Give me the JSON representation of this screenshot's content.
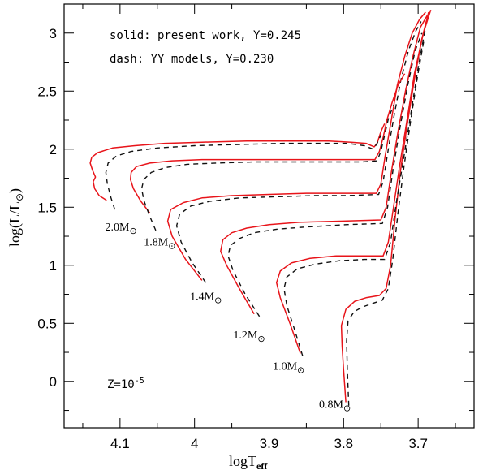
{
  "chart_data": {
    "type": "line",
    "title": "",
    "xlabel": "logT",
    "xlabel_sub": "eff",
    "ylabel_prefix": "log(L",
    "ylabel_mid": "/L",
    "ylabel_sun": "⊙",
    "ylabel_suffix": ")",
    "xlim": [
      4.175,
      3.625
    ],
    "ylim": [
      -0.4,
      3.25
    ],
    "x_inverted": true,
    "xticks": [
      4.1,
      4.0,
      3.9,
      3.8,
      3.7
    ],
    "xtick_labels": [
      "4.1",
      "4",
      "3.9",
      "3.8",
      "3.7"
    ],
    "yticks": [
      0,
      0.5,
      1,
      1.5,
      2,
      2.5,
      3
    ],
    "ytick_labels": [
      "0",
      "0.5",
      "1",
      "1.5",
      "2",
      "2.5",
      "3"
    ],
    "legend_text": [
      "solid: present work, Y=0.245",
      "dash: YY models, Y=0.230"
    ],
    "metallicity_label": "Z=10",
    "metallicity_exp": "-5",
    "colors": {
      "present": "#e8141a",
      "yy": "#111111"
    },
    "series": [
      {
        "name": "present-0.8",
        "style": "solid",
        "x": [
          3.797,
          3.8,
          3.802,
          3.803,
          3.797,
          3.785,
          3.77,
          3.752,
          3.743,
          3.737,
          3.731,
          3.724,
          3.715,
          3.705,
          3.695,
          3.686
        ],
        "y": [
          -0.18,
          0.1,
          0.3,
          0.48,
          0.62,
          0.69,
          0.72,
          0.74,
          0.8,
          1.0,
          1.4,
          1.8,
          2.2,
          2.6,
          2.95,
          3.18
        ]
      },
      {
        "name": "yy-0.8",
        "style": "dash",
        "x": [
          3.793,
          3.795,
          3.796,
          3.794,
          3.786,
          3.775,
          3.762,
          3.748,
          3.74,
          3.734,
          3.727,
          3.719,
          3.71,
          3.701,
          3.692
        ],
        "y": [
          -0.21,
          0.1,
          0.35,
          0.52,
          0.6,
          0.64,
          0.67,
          0.7,
          0.8,
          1.05,
          1.45,
          1.85,
          2.25,
          2.62,
          2.95
        ]
      },
      {
        "name": "present-1.0",
        "style": "solid",
        "x": [
          3.858,
          3.872,
          3.885,
          3.89,
          3.885,
          3.87,
          3.845,
          3.81,
          3.775,
          3.747,
          3.74,
          3.733,
          3.725,
          3.715,
          3.705,
          3.693,
          3.683
        ],
        "y": [
          0.24,
          0.5,
          0.72,
          0.85,
          0.95,
          1.02,
          1.06,
          1.08,
          1.08,
          1.08,
          1.2,
          1.5,
          1.85,
          2.25,
          2.65,
          3.0,
          3.2
        ]
      },
      {
        "name": "yy-1.0",
        "style": "dash",
        "x": [
          3.855,
          3.866,
          3.876,
          3.88,
          3.876,
          3.862,
          3.838,
          3.805,
          3.772,
          3.745,
          3.737,
          3.729,
          3.72,
          3.71,
          3.7,
          3.69
        ],
        "y": [
          0.22,
          0.45,
          0.65,
          0.8,
          0.9,
          0.97,
          1.01,
          1.04,
          1.05,
          1.05,
          1.2,
          1.55,
          1.9,
          2.3,
          2.7,
          3.05
        ]
      },
      {
        "name": "present-1.2",
        "style": "solid",
        "x": [
          3.92,
          3.94,
          3.957,
          3.965,
          3.962,
          3.95,
          3.93,
          3.9,
          3.86,
          3.8,
          3.75,
          3.743,
          3.736,
          3.727,
          3.717,
          3.707,
          3.697,
          3.688
        ],
        "y": [
          0.58,
          0.8,
          1.0,
          1.12,
          1.22,
          1.28,
          1.32,
          1.35,
          1.37,
          1.38,
          1.39,
          1.5,
          1.8,
          2.15,
          2.5,
          2.8,
          3.05,
          3.15
        ]
      },
      {
        "name": "yy-1.2",
        "style": "dash",
        "x": [
          3.913,
          3.932,
          3.948,
          3.955,
          3.952,
          3.94,
          3.92,
          3.89,
          3.85,
          3.795,
          3.748,
          3.741,
          3.733,
          3.724,
          3.714,
          3.704,
          3.695
        ],
        "y": [
          0.56,
          0.75,
          0.95,
          1.08,
          1.17,
          1.23,
          1.28,
          1.31,
          1.33,
          1.35,
          1.36,
          1.5,
          1.85,
          2.2,
          2.55,
          2.85,
          3.0
        ]
      },
      {
        "name": "present-1.4",
        "style": "solid",
        "x": [
          3.99,
          4.012,
          4.03,
          4.036,
          4.032,
          4.015,
          3.99,
          3.95,
          3.9,
          3.85,
          3.8,
          3.756,
          3.75,
          3.744,
          3.736,
          3.728,
          3.718,
          3.708,
          3.698,
          3.69
        ],
        "y": [
          0.87,
          1.05,
          1.25,
          1.38,
          1.48,
          1.54,
          1.58,
          1.6,
          1.61,
          1.62,
          1.62,
          1.62,
          1.7,
          1.95,
          2.25,
          2.55,
          2.8,
          3.0,
          3.12,
          3.18
        ]
      },
      {
        "name": "yy-1.4",
        "style": "dash",
        "x": [
          3.985,
          4.003,
          4.018,
          4.024,
          4.02,
          4.005,
          3.98,
          3.94,
          3.89,
          3.84,
          3.795,
          3.753,
          3.747,
          3.74,
          3.732,
          3.723,
          3.713,
          3.703,
          3.696
        ],
        "y": [
          0.85,
          1.02,
          1.2,
          1.34,
          1.44,
          1.51,
          1.55,
          1.58,
          1.59,
          1.6,
          1.6,
          1.61,
          1.72,
          2.0,
          2.3,
          2.6,
          2.85,
          3.02,
          3.1
        ]
      },
      {
        "name": "present-1.8",
        "style": "solid",
        "x": [
          4.06,
          4.072,
          4.082,
          4.086,
          4.085,
          4.078,
          4.06,
          4.03,
          3.99,
          3.94,
          3.88,
          3.82,
          3.78,
          3.758,
          3.752,
          3.747,
          3.742,
          3.735,
          3.727,
          3.718
        ],
        "y": [
          1.45,
          1.55,
          1.66,
          1.74,
          1.8,
          1.85,
          1.88,
          1.9,
          1.91,
          1.91,
          1.91,
          1.91,
          1.91,
          1.91,
          1.98,
          2.1,
          2.25,
          2.4,
          2.55,
          2.65
        ]
      },
      {
        "name": "yy-1.8",
        "style": "dash",
        "x": [
          4.052,
          4.06,
          4.068,
          4.071,
          4.068,
          4.058,
          4.04,
          4.01,
          3.97,
          3.92,
          3.86,
          3.81,
          3.775,
          3.755,
          3.75,
          3.745,
          3.74,
          3.733
        ],
        "y": [
          1.3,
          1.42,
          1.56,
          1.66,
          1.74,
          1.8,
          1.84,
          1.87,
          1.88,
          1.89,
          1.89,
          1.89,
          1.89,
          1.9,
          1.98,
          2.12,
          2.26,
          2.38
        ]
      },
      {
        "name": "present-2.0",
        "style": "solid",
        "x": [
          4.118,
          4.128,
          4.134,
          4.136,
          4.133,
          4.137,
          4.14,
          4.138,
          4.13,
          4.11,
          4.08,
          4.04,
          3.99,
          3.93,
          3.87,
          3.82,
          3.79,
          3.77,
          3.759,
          3.755,
          3.75,
          3.745
        ],
        "y": [
          1.56,
          1.6,
          1.66,
          1.72,
          1.76,
          1.82,
          1.88,
          1.93,
          1.97,
          2.01,
          2.03,
          2.05,
          2.06,
          2.07,
          2.07,
          2.07,
          2.06,
          2.05,
          2.02,
          2.05,
          2.15,
          2.22
        ]
      },
      {
        "name": "yy-2.0",
        "style": "dash",
        "x": [
          4.107,
          4.112,
          4.117,
          4.119,
          4.116,
          4.105,
          4.085,
          4.05,
          4.0,
          3.94,
          3.88,
          3.83,
          3.795,
          3.772,
          3.76,
          3.755,
          3.75
        ],
        "y": [
          1.48,
          1.58,
          1.7,
          1.8,
          1.88,
          1.94,
          1.98,
          2.01,
          2.03,
          2.04,
          2.05,
          2.05,
          2.05,
          2.03,
          2.0,
          2.05,
          2.12
        ]
      }
    ],
    "mass_labels": [
      {
        "text": "2.0M",
        "x": 4.12,
        "y": 1.3
      },
      {
        "text": "1.8M",
        "x": 4.068,
        "y": 1.17
      },
      {
        "text": "1.4M",
        "x": 4.006,
        "y": 0.7
      },
      {
        "text": "1.2M",
        "x": 3.948,
        "y": 0.37
      },
      {
        "text": "1.0M",
        "x": 3.895,
        "y": 0.1
      },
      {
        "text": "0.8M",
        "x": 3.833,
        "y": -0.23
      }
    ]
  }
}
